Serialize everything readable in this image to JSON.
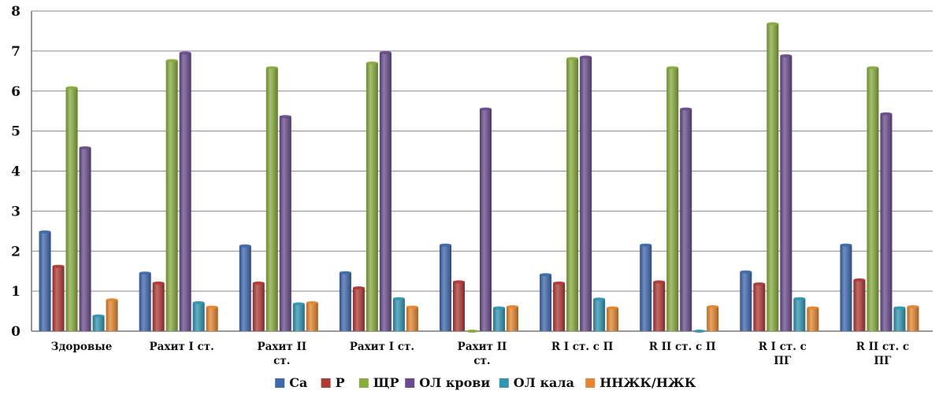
{
  "chart_data": {
    "type": "bar",
    "title": "",
    "xlabel": "",
    "ylabel": "",
    "ylim": [
      0,
      8
    ],
    "yticks": [
      0,
      1,
      2,
      3,
      4,
      5,
      6,
      7,
      8
    ],
    "grid": true,
    "legend_position": "bottom",
    "categories": [
      [
        "Здоровые"
      ],
      [
        "Рахит  I ст."
      ],
      [
        "Рахит  II",
        "ст."
      ],
      [
        "Рахит  I ст."
      ],
      [
        "Рахит  II",
        "ст."
      ],
      [
        "R I ст.  с П"
      ],
      [
        "R II  ст.  с П"
      ],
      [
        "R I ст.  с",
        "ПГ"
      ],
      [
        "R II  ст.  с",
        "ПГ"
      ]
    ],
    "series": [
      {
        "name": "Ca",
        "color": "#3F68AE",
        "values": [
          2.5,
          1.47,
          2.15,
          1.48,
          2.17,
          1.43,
          2.17,
          1.5,
          2.17
        ]
      },
      {
        "name": "P",
        "color": "#B03A36",
        "values": [
          1.64,
          1.22,
          1.22,
          1.1,
          1.25,
          1.22,
          1.25,
          1.2,
          1.3
        ]
      },
      {
        "name": "ЩР",
        "color": "#88AC3E",
        "values": [
          6.1,
          6.78,
          6.6,
          6.72,
          0.0,
          6.83,
          6.6,
          7.7,
          6.6
        ]
      },
      {
        "name": "ОЛ крови",
        "color": "#6A4C8E",
        "values": [
          4.6,
          6.97,
          5.38,
          6.98,
          5.57,
          6.87,
          5.57,
          6.9,
          5.45
        ]
      },
      {
        "name": "ОЛ кала",
        "color": "#3296B3",
        "values": [
          0.4,
          0.73,
          0.7,
          0.83,
          0.6,
          0.82,
          0.0,
          0.83,
          0.6
        ]
      },
      {
        "name": "ННЖК/НЖК",
        "color": "#E5862E",
        "values": [
          0.8,
          0.62,
          0.73,
          0.62,
          0.63,
          0.6,
          0.63,
          0.6,
          0.63
        ]
      }
    ]
  }
}
